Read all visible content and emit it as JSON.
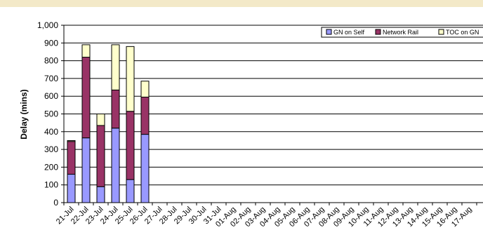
{
  "chart_data": {
    "type": "bar",
    "stacked": true,
    "ylabel": "Delay (mins)",
    "xlabel": "",
    "ylim": [
      0,
      1000
    ],
    "yticks": [
      0,
      100,
      200,
      300,
      400,
      500,
      600,
      700,
      800,
      900,
      1000
    ],
    "ytick_labels": [
      "0",
      "100",
      "200",
      "300",
      "400",
      "500",
      "600",
      "700",
      "800",
      "900",
      "1,000"
    ],
    "grid": true,
    "legend_position": "top-right",
    "categories": [
      "21-Jul",
      "22-Jul",
      "23-Jul",
      "24-Jul",
      "25-Jul",
      "26-Jul",
      "27-Jul",
      "28-Jul",
      "29-Jul",
      "30-Jul",
      "31-Jul",
      "01-Aug",
      "02-Aug",
      "03-Aug",
      "04-Aug",
      "05-Aug",
      "06-Aug",
      "07-Aug",
      "08-Aug",
      "09-Aug",
      "10-Aug",
      "11-Aug",
      "12-Aug",
      "13-Aug",
      "14-Aug",
      "15-Aug",
      "16-Aug",
      "17-Aug"
    ],
    "series": [
      {
        "name": "GN on Self",
        "color": "#9999ff",
        "values": [
          160,
          365,
          90,
          420,
          130,
          385,
          0,
          0,
          0,
          0,
          0,
          0,
          0,
          0,
          0,
          0,
          0,
          0,
          0,
          0,
          0,
          0,
          0,
          0,
          0,
          0,
          0,
          0
        ]
      },
      {
        "name": "Network Rail",
        "color": "#993366",
        "values": [
          185,
          455,
          345,
          215,
          385,
          210,
          0,
          0,
          0,
          0,
          0,
          0,
          0,
          0,
          0,
          0,
          0,
          0,
          0,
          0,
          0,
          0,
          0,
          0,
          0,
          0,
          0,
          0
        ]
      },
      {
        "name": "TOC on GN",
        "color": "#ffffcc",
        "values": [
          5,
          70,
          65,
          255,
          365,
          90,
          0,
          0,
          0,
          0,
          0,
          0,
          0,
          0,
          0,
          0,
          0,
          0,
          0,
          0,
          0,
          0,
          0,
          0,
          0,
          0,
          0,
          0
        ]
      }
    ]
  }
}
